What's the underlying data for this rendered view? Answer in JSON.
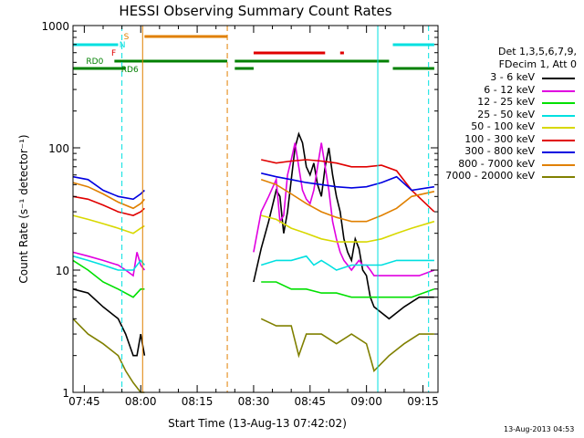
{
  "chart_data": {
    "type": "line",
    "title": "HESSI Observing Summary Count Rates",
    "xlabel": "Start Time (13-Aug-13 07:42:02)",
    "ylabel": "Count Rate (s⁻¹ detector⁻¹)",
    "ylog": true,
    "ylim": [
      1,
      1000
    ],
    "xlim_minutes": [
      0,
      97
    ],
    "x_ticks": [
      {
        "t": 3,
        "label": "07:45"
      },
      {
        "t": 18,
        "label": "08:00"
      },
      {
        "t": 33,
        "label": "08:15"
      },
      {
        "t": 48,
        "label": "08:30"
      },
      {
        "t": 63,
        "label": "08:45"
      },
      {
        "t": 78,
        "label": "09:00"
      },
      {
        "t": 93,
        "label": "09:15"
      }
    ],
    "y_ticks": [
      {
        "v": 1,
        "label": "1"
      },
      {
        "v": 10,
        "label": "10"
      },
      {
        "v": 100,
        "label": "100"
      },
      {
        "v": 1000,
        "label": "1000"
      }
    ],
    "legend_header": [
      "Det 1,3,5,6,7,9,",
      "FDecim 1, Att 0"
    ],
    "legend_position": "right",
    "flag_labels": {
      "S": "S",
      "N": "N",
      "F": "F",
      "RD0": "RD0",
      "RD6": "RD6"
    },
    "series": [
      {
        "name": "3 - 6 keV",
        "color": "#000000",
        "x": [
          0,
          4,
          8,
          12,
          14,
          16,
          17,
          18,
          19,
          43,
          44,
          46,
          48,
          50,
          52,
          54,
          55,
          56,
          57,
          58,
          59,
          60,
          61,
          62,
          63,
          64,
          65,
          66,
          67,
          68,
          69,
          70,
          71,
          72,
          73,
          74,
          75,
          76,
          77,
          78,
          79,
          80,
          84,
          88,
          92,
          96
        ],
        "y": [
          7,
          6.5,
          5,
          4,
          3,
          2,
          2,
          3,
          2,
          null,
          null,
          null,
          8,
          15,
          25,
          45,
          40,
          20,
          30,
          55,
          100,
          130,
          110,
          70,
          60,
          75,
          50,
          40,
          70,
          100,
          60,
          40,
          30,
          18,
          14,
          12,
          18,
          15,
          10,
          9,
          6,
          5,
          4,
          5,
          6,
          6
        ]
      },
      {
        "name": "6 - 12 keV",
        "color": "#e000e0",
        "x": [
          0,
          4,
          8,
          12,
          14,
          16,
          17,
          18,
          19,
          43,
          44,
          46,
          48,
          50,
          52,
          54,
          55,
          56,
          57,
          58,
          59,
          60,
          61,
          62,
          63,
          64,
          65,
          66,
          67,
          68,
          69,
          70,
          71,
          72,
          73,
          74,
          75,
          76,
          77,
          78,
          79,
          80,
          84,
          88,
          92,
          96
        ],
        "y": [
          14,
          13,
          12,
          11,
          10,
          9,
          14,
          11,
          10,
          null,
          null,
          null,
          14,
          30,
          40,
          55,
          25,
          28,
          60,
          80,
          110,
          70,
          45,
          38,
          35,
          45,
          70,
          110,
          70,
          45,
          25,
          18,
          14,
          12,
          11,
          10,
          11,
          12,
          11,
          11,
          10,
          9,
          9,
          9,
          9,
          10
        ]
      },
      {
        "name": "12 - 25 keV",
        "color": "#00e000",
        "x": [
          0,
          4,
          8,
          12,
          16,
          18,
          19,
          43,
          44,
          46,
          50,
          54,
          58,
          62,
          66,
          70,
          74,
          78,
          82,
          86,
          90,
          96
        ],
        "y": [
          12,
          10,
          8,
          7,
          6,
          7,
          7,
          null,
          null,
          null,
          8,
          8,
          7,
          7,
          6.5,
          6.5,
          6,
          6,
          6,
          6,
          6,
          7
        ]
      },
      {
        "name": "25 - 50 keV",
        "color": "#00e0e0",
        "x": [
          0,
          4,
          8,
          12,
          16,
          18,
          19,
          43,
          44,
          46,
          50,
          54,
          58,
          62,
          64,
          66,
          68,
          70,
          74,
          78,
          82,
          86,
          90,
          96
        ],
        "y": [
          13,
          12,
          11,
          10,
          10,
          12,
          11,
          null,
          null,
          null,
          11,
          12,
          12,
          13,
          11,
          12,
          11,
          10,
          11,
          11,
          11,
          12,
          12,
          12
        ]
      },
      {
        "name": "50 - 100 keV",
        "color": "#d8d800",
        "x": [
          0,
          4,
          8,
          12,
          16,
          18,
          19,
          43,
          44,
          46,
          50,
          54,
          58,
          62,
          66,
          70,
          74,
          78,
          82,
          86,
          90,
          96
        ],
        "y": [
          28,
          26,
          24,
          22,
          20,
          22,
          23,
          null,
          null,
          null,
          28,
          26,
          22,
          20,
          18,
          17,
          17,
          17,
          18,
          20,
          22,
          25
        ]
      },
      {
        "name": "100 - 300 keV",
        "color": "#e00000",
        "x": [
          0,
          4,
          8,
          12,
          16,
          18,
          19,
          43,
          44,
          46,
          50,
          54,
          58,
          62,
          66,
          70,
          74,
          78,
          82,
          86,
          90,
          96
        ],
        "y": [
          40,
          38,
          34,
          30,
          28,
          30,
          32,
          null,
          null,
          null,
          80,
          75,
          78,
          80,
          78,
          75,
          70,
          70,
          72,
          65,
          45,
          30
        ]
      },
      {
        "name": "300 - 800 keV",
        "color": "#0000e0",
        "x": [
          0,
          4,
          8,
          12,
          16,
          18,
          19,
          43,
          44,
          46,
          50,
          54,
          58,
          62,
          66,
          70,
          74,
          78,
          82,
          86,
          90,
          96
        ],
        "y": [
          58,
          55,
          45,
          40,
          38,
          42,
          45,
          null,
          null,
          null,
          62,
          58,
          55,
          52,
          50,
          48,
          47,
          48,
          52,
          58,
          45,
          48
        ]
      },
      {
        "name": "800 - 7000 keV",
        "color": "#e08000",
        "x": [
          0,
          4,
          8,
          12,
          16,
          18,
          19,
          43,
          44,
          46,
          50,
          54,
          58,
          62,
          66,
          70,
          74,
          78,
          82,
          86,
          90,
          96
        ],
        "y": [
          52,
          48,
          42,
          36,
          32,
          35,
          38,
          null,
          null,
          null,
          55,
          50,
          42,
          35,
          30,
          27,
          25,
          25,
          28,
          32,
          40,
          44
        ]
      },
      {
        "name": "7000 - 20000 keV",
        "color": "#808000",
        "x": [
          0,
          4,
          8,
          12,
          14,
          16,
          18,
          19,
          43,
          44,
          46,
          50,
          54,
          58,
          60,
          62,
          66,
          70,
          74,
          78,
          80,
          84,
          88,
          92,
          96
        ],
        "y": [
          4,
          3,
          2.5,
          2,
          1.5,
          1.2,
          1,
          1,
          null,
          null,
          null,
          4,
          3.5,
          3.5,
          2,
          3,
          3,
          2.5,
          3,
          2.5,
          1.5,
          2,
          2.5,
          3,
          3
        ]
      }
    ],
    "flag_bars": [
      {
        "flag": "S",
        "color": "#e08000",
        "segments": [
          [
            19,
            41
          ]
        ]
      },
      {
        "flag": "N",
        "color": "#00e0e0",
        "segments": [
          [
            0,
            12
          ],
          [
            85,
            96
          ]
        ]
      },
      {
        "flag": "F",
        "color": "#e00000",
        "segments": [
          [
            48,
            67
          ],
          [
            71,
            72
          ]
        ]
      },
      {
        "flag": "RD0",
        "color": "#008000",
        "segments": [
          [
            11,
            41
          ],
          [
            43,
            58
          ],
          [
            55,
            84
          ]
        ]
      },
      {
        "flag": "RD6",
        "color": "#008000",
        "segments": [
          [
            0,
            14
          ],
          [
            43,
            48
          ],
          [
            85,
            96
          ]
        ]
      }
    ],
    "vertical_lines": [
      {
        "t": 13,
        "color": "#00e0e0",
        "style": "dashed"
      },
      {
        "t": 18.5,
        "color": "#e08000",
        "style": "solid"
      },
      {
        "t": 41,
        "color": "#e08000",
        "style": "dashed"
      },
      {
        "t": 81,
        "color": "#00e0e0",
        "style": "solid"
      },
      {
        "t": 94.5,
        "color": "#00e0e0",
        "style": "dashed"
      }
    ]
  },
  "timestamp": "13-Aug-2013 04:53"
}
